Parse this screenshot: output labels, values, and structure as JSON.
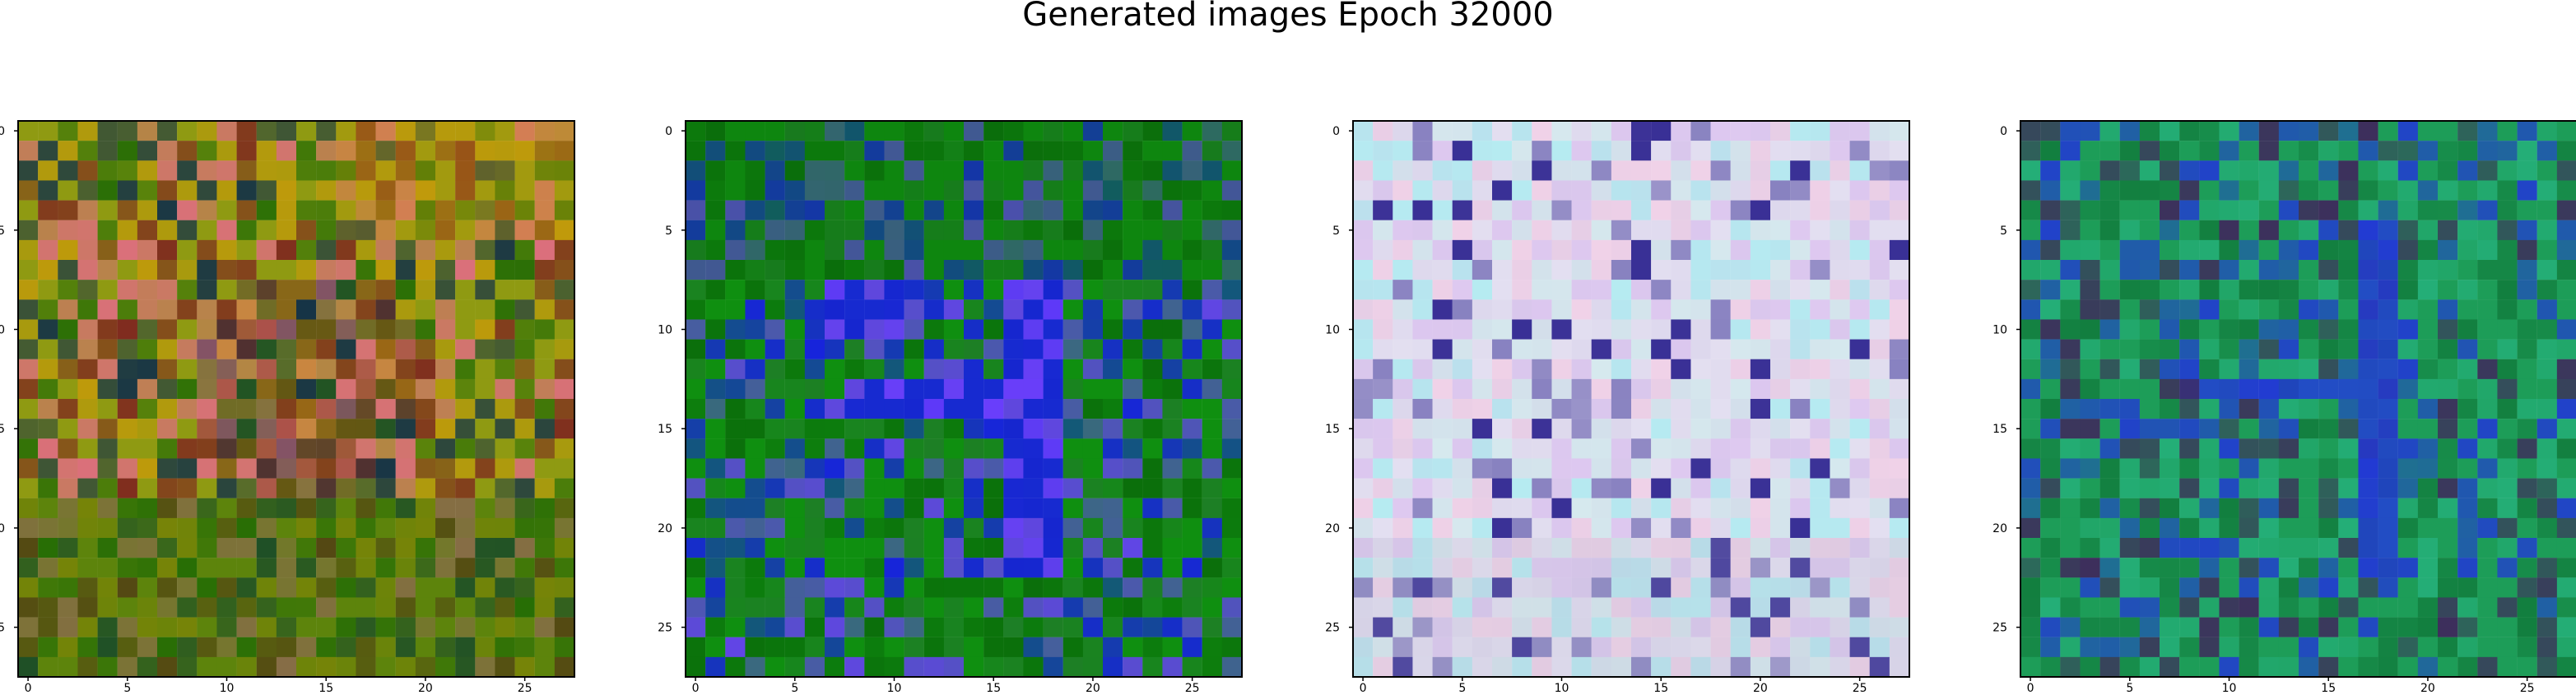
{
  "figure": {
    "title": "Generated images Epoch 32000"
  },
  "chart_data": [
    {
      "type": "heatmap",
      "name": "generated-image-1",
      "title": "",
      "xlabel": "",
      "ylabel": "",
      "grid_size": [
        28,
        28
      ],
      "xlim": [
        -0.5,
        27.5
      ],
      "ylim": [
        27.5,
        -0.5
      ],
      "xticks": [
        0,
        5,
        10,
        15,
        20,
        25
      ],
      "yticks": [
        0,
        5,
        10,
        15,
        20,
        25
      ],
      "grid": false,
      "style": "olive-orange field with green bottom, red/magenta cluster near center",
      "base_color": "#8f9a12",
      "dominant_colors": [
        "#8f9a12",
        "#c49a0a",
        "#1f6a04",
        "#7e2020",
        "#e46a88",
        "#0d2c4a"
      ]
    },
    {
      "type": "heatmap",
      "name": "generated-image-2",
      "title": "",
      "xlabel": "",
      "ylabel": "",
      "grid_size": [
        28,
        28
      ],
      "xlim": [
        -0.5,
        27.5
      ],
      "ylim": [
        27.5,
        -0.5
      ],
      "xticks": [
        0,
        5,
        10,
        15,
        20,
        25
      ],
      "yticks": [
        0,
        5,
        10,
        15,
        20,
        25
      ],
      "grid": false,
      "style": "green background with blue digit-like stroke",
      "base_color": "#0f8f10",
      "dominant_colors": [
        "#0f8f10",
        "#0a6b0a",
        "#1f7d28",
        "#1818f2",
        "#6b3cff"
      ]
    },
    {
      "type": "heatmap",
      "name": "generated-image-3",
      "title": "",
      "xlabel": "",
      "ylabel": "",
      "grid_size": [
        28,
        28
      ],
      "xlim": [
        -0.5,
        27.5
      ],
      "ylim": [
        27.5,
        -0.5
      ],
      "xticks": [
        0,
        5,
        10,
        15,
        20,
        25
      ],
      "yticks": [
        0,
        5,
        10,
        15,
        20,
        25
      ],
      "grid": false,
      "style": "pastel speckled field with cyan, lilac, pink, and a few saturated pixels",
      "base_color": "#d7d1e9",
      "dominant_colors": [
        "#d7d1e9",
        "#bde4e4",
        "#cda6e8",
        "#7fe8ea",
        "#f0b8d8",
        "#251b8b"
      ]
    },
    {
      "type": "heatmap",
      "name": "generated-image-4",
      "title": "",
      "xlabel": "",
      "ylabel": "",
      "grid_size": [
        28,
        28
      ],
      "xlim": [
        -0.5,
        27.5
      ],
      "ylim": [
        27.5,
        -0.5
      ],
      "xticks": [
        0,
        5,
        10,
        15,
        20,
        25
      ],
      "yticks": [
        0,
        5,
        10,
        15,
        20,
        25
      ],
      "grid": false,
      "style": "teal-green background with vertical blue stroke and some dark pixels",
      "base_color": "#1d9d58",
      "dominant_colors": [
        "#1d9d58",
        "#117b3c",
        "#25b07b",
        "#2238d6",
        "#3e2b5c"
      ]
    }
  ]
}
